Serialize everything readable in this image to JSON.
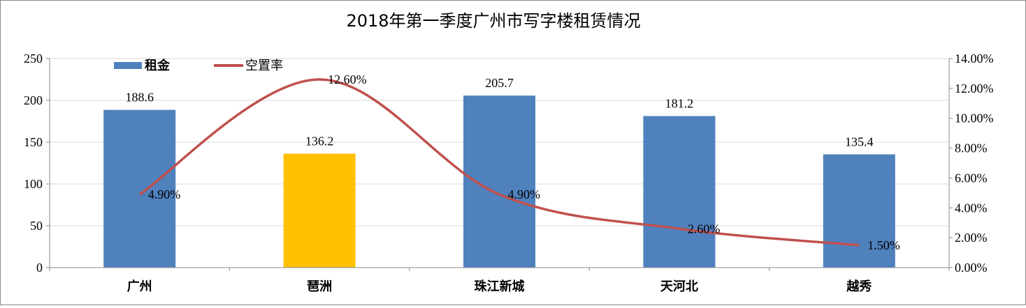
{
  "chart_data": {
    "type": "bar",
    "title": "2018年第一季度广州市写字楼租赁情况",
    "categories": [
      "广州",
      "琶洲",
      "珠江新城",
      "天河北",
      "越秀"
    ],
    "series": [
      {
        "name": "租金",
        "type": "bar",
        "axis": "left",
        "values": [
          188.6,
          136.2,
          205.7,
          181.2,
          135.4
        ],
        "labels": [
          "188.6",
          "136.2",
          "205.7",
          "181.2",
          "135.4"
        ],
        "color": "#4F81BD",
        "highlight": {
          "index": 1,
          "color": "#FFC000"
        }
      },
      {
        "name": "空置率",
        "type": "line",
        "axis": "right",
        "smooth": true,
        "values": [
          4.9,
          12.6,
          4.9,
          2.6,
          1.5
        ],
        "labels": [
          "4.90%",
          "12.60%",
          "4.90%",
          "2.60%",
          "1.50%"
        ],
        "color": "#C0504D"
      }
    ],
    "y_left": {
      "range": [
        0,
        250
      ],
      "ticks": [
        "0",
        "50",
        "100",
        "150",
        "200",
        "250"
      ]
    },
    "y_right": {
      "range": [
        0,
        14
      ],
      "ticks": [
        "0.00%",
        "2.00%",
        "4.00%",
        "6.00%",
        "8.00%",
        "10.00%",
        "12.00%",
        "14.00%"
      ]
    },
    "grid": true,
    "legend": "top-left"
  }
}
